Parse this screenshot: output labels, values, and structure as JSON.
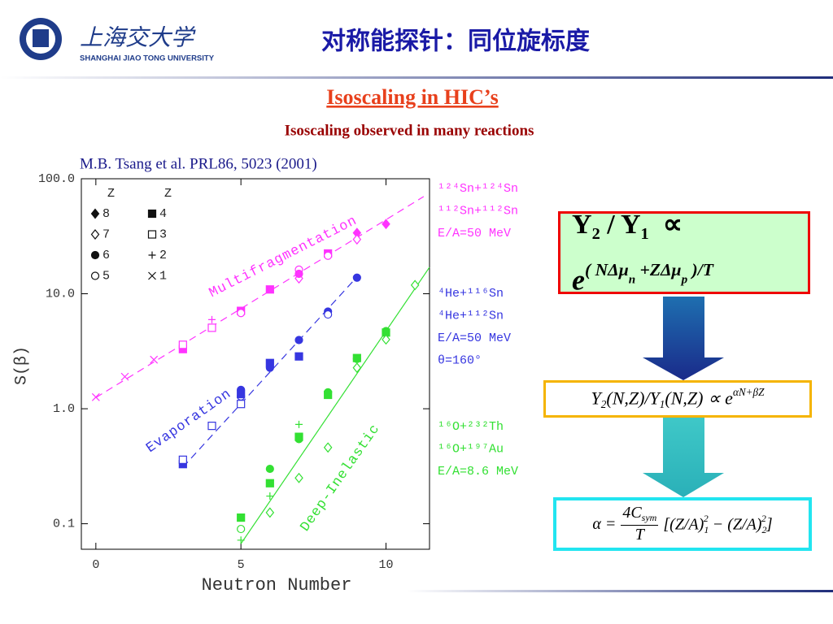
{
  "header": {
    "university_cn": "上海交大学",
    "university_en": "SHANGHAI  JIAO TONG  UNIVERSITY",
    "title": "对称能探针：同位旋标度"
  },
  "subtitle": "Isoscaling in HIC’s",
  "caption": "Isoscaling observed in many reactions",
  "citation": "M.B. Tsang et al. PRL86, 5023 (2001)",
  "chart_data": {
    "type": "scatter",
    "log_y": true,
    "xlabel": "Neutron Number",
    "ylabel": "S(β)",
    "xlim": [
      -0.5,
      11.5
    ],
    "xticks": [
      0,
      5,
      10
    ],
    "ylim": [
      0.06,
      100
    ],
    "yticks": [
      0.1,
      {
        "value": 1,
        "label": "1.0"
      },
      {
        "value": 10,
        "label": "10.0"
      },
      {
        "value": 100,
        "label": "100.0"
      }
    ],
    "legend": [
      {
        "title": "Z",
        "entries": [
          {
            "label": "8",
            "marker": "diamond-filled"
          },
          {
            "label": "7",
            "marker": "diamond"
          },
          {
            "label": "6",
            "marker": "circle-filled"
          },
          {
            "label": "5",
            "marker": "circle"
          }
        ]
      },
      {
        "title": "Z",
        "entries": [
          {
            "label": "4",
            "marker": "square-filled"
          },
          {
            "label": "3",
            "marker": "square"
          },
          {
            "label": "2",
            "marker": "plus"
          },
          {
            "label": "1",
            "marker": "x"
          }
        ]
      }
    ],
    "series": [
      {
        "name": "Multifragmentation",
        "color": "#ff33ff",
        "fit_style": "dashed",
        "x": [
          0,
          1,
          2,
          3,
          3,
          4,
          4,
          5,
          5,
          6,
          7,
          7,
          7,
          8,
          8,
          9,
          9,
          10
        ],
        "values": [
          1.26,
          1.9,
          2.67,
          3.3,
          3.6,
          5.96,
          5.06,
          7.1,
          6.8,
          10.9,
          13.6,
          16.2,
          14.9,
          22.4,
          21.4,
          33.8,
          29.7,
          40.4
        ],
        "markers": [
          "x",
          "x",
          "x",
          "square-filled",
          "square",
          "plus",
          "square",
          "square-filled",
          "circle",
          "square-filled",
          "diamond",
          "circle",
          "circle-filled",
          "square-filled",
          "circle",
          "diamond-filled",
          "diamond",
          "diamond-filled"
        ],
        "fit": {
          "x": [
            0,
            11.3
          ],
          "values": [
            1.25,
            70
          ]
        }
      },
      {
        "name": "Evaporation",
        "color": "#3636e0",
        "fit_style": "dashed",
        "x": [
          3,
          3,
          4,
          5,
          5,
          5,
          5,
          6,
          6,
          7,
          7,
          8,
          8,
          9
        ],
        "values": [
          0.33,
          0.36,
          0.71,
          1.46,
          1.28,
          1.1,
          1.34,
          2.5,
          2.27,
          3.96,
          2.85,
          7.0,
          6.6,
          13.8
        ],
        "markers": [
          "square-filled",
          "square",
          "square",
          "circle-filled",
          "circle",
          "square",
          "square-filled",
          "square-filled",
          "circle-filled",
          "circle-filled",
          "square-filled",
          "circle-filled",
          "circle",
          "circle-filled"
        ],
        "fit": {
          "x": [
            3,
            9
          ],
          "values": [
            0.31,
            14
          ]
        }
      },
      {
        "name": "Deep-Inelastic",
        "color": "#33e033",
        "fit_style": "solid",
        "x": [
          5,
          5,
          5,
          6,
          6,
          6,
          6,
          7,
          7,
          7,
          7,
          8,
          8,
          8,
          9,
          9,
          9,
          10,
          10,
          10,
          11
        ],
        "values": [
          0.113,
          0.09,
          0.072,
          0.3,
          0.225,
          0.174,
          0.125,
          0.57,
          0.545,
          0.25,
          0.73,
          1.39,
          1.32,
          0.46,
          2.71,
          2.76,
          2.27,
          4.74,
          4.6,
          4.0,
          11.9
        ],
        "markers": [
          "square-filled",
          "circle",
          "plus",
          "circle-filled",
          "square-filled",
          "plus",
          "diamond",
          "square-filled",
          "circle-filled",
          "diamond",
          "plus",
          "circle-filled",
          "square-filled",
          "diamond",
          "circle-filled",
          "square-filled",
          "diamond",
          "circle-filled",
          "square-filled",
          "diamond",
          "diamond"
        ],
        "fit": {
          "x": [
            5,
            11.5
          ],
          "values": [
            0.067,
            17
          ]
        }
      }
    ],
    "annotations": [
      {
        "color": "#ff33ff",
        "lines": [
          "¹²⁴Sn+¹²⁴Sn",
          "¹¹²Sn+¹¹²Sn",
          "E/A=50 MeV"
        ]
      },
      {
        "color": "#3636e0",
        "lines": [
          "⁴He+¹¹⁶Sn",
          "⁴He+¹¹²Sn",
          "E/A=50 MeV",
          "θ=160°"
        ]
      },
      {
        "color": "#33e033",
        "lines": [
          "¹⁶O+²³²Th",
          "¹⁶O+¹⁹⁷Au",
          "E/A=8.6 MeV"
        ]
      }
    ]
  },
  "formulas": {
    "f1_line1": [
      [
        "Y",
        ""
      ],
      [
        "2",
        "sub"
      ],
      [
        " / Y",
        ""
      ],
      [
        "1",
        "sub"
      ],
      [
        "  ∝",
        ""
      ]
    ],
    "f1_line2": [
      [
        "e",
        ""
      ],
      [
        "( NΔμ",
        "sup"
      ],
      [
        "n",
        "supsub"
      ],
      [
        " +ZΔμ",
        "sup"
      ],
      [
        "p",
        "supsub"
      ],
      [
        " )/T",
        "sup"
      ]
    ],
    "f2": [
      [
        "Y",
        ""
      ],
      [
        "2",
        "sub"
      ],
      [
        "(N,Z)/Y",
        ""
      ],
      [
        "1",
        "sub"
      ],
      [
        "(N,Z) ∝ e",
        ""
      ],
      [
        "αN+βZ",
        "sup"
      ]
    ],
    "f3_lhs": "α =",
    "f3_num": [
      [
        "4C",
        ""
      ],
      [
        "sym",
        "sub"
      ]
    ],
    "f3_den": "T",
    "f3_rhs": [
      [
        "[(Z/A)",
        ""
      ],
      [
        "1",
        "sub"
      ],
      [
        "2",
        "supback"
      ],
      [
        " − (Z/A)",
        ""
      ],
      [
        "2",
        "sub"
      ],
      [
        "2",
        "supback"
      ],
      [
        "]",
        ""
      ]
    ]
  }
}
